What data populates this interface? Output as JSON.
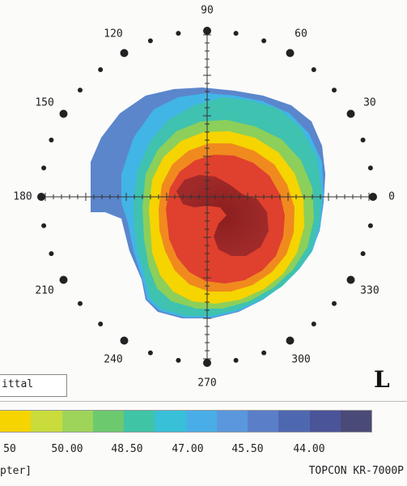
{
  "angle_labels": [
    {
      "text": "90",
      "deg": 90
    },
    {
      "text": "60",
      "deg": 60
    },
    {
      "text": "30",
      "deg": 30
    },
    {
      "text": "0",
      "deg": 0
    },
    {
      "text": "330",
      "deg": 330
    },
    {
      "text": "300",
      "deg": 300
    },
    {
      "text": "270",
      "deg": 270
    },
    {
      "text": "240",
      "deg": 240
    },
    {
      "text": "210",
      "deg": 210
    },
    {
      "text": "180",
      "deg": 180
    },
    {
      "text": "150",
      "deg": 150
    },
    {
      "text": "120",
      "deg": 120
    }
  ],
  "eye": "L",
  "map_type": "ittal",
  "scale": {
    "swatch_colors": [
      "#f6d400",
      "#c9dc3c",
      "#9ed45a",
      "#6cc96e",
      "#3fc4a6",
      "#38c0d8",
      "#49aee8",
      "#5a97dc",
      "#5a7fc8",
      "#4e68b0",
      "#4a5498",
      "#4a4a78"
    ],
    "tick_labels": [
      "50",
      "50.00",
      "48.50",
      "47.00",
      "45.50",
      "44.00"
    ]
  },
  "units": "pter]",
  "device": "TOPCON KR-7000P"
}
